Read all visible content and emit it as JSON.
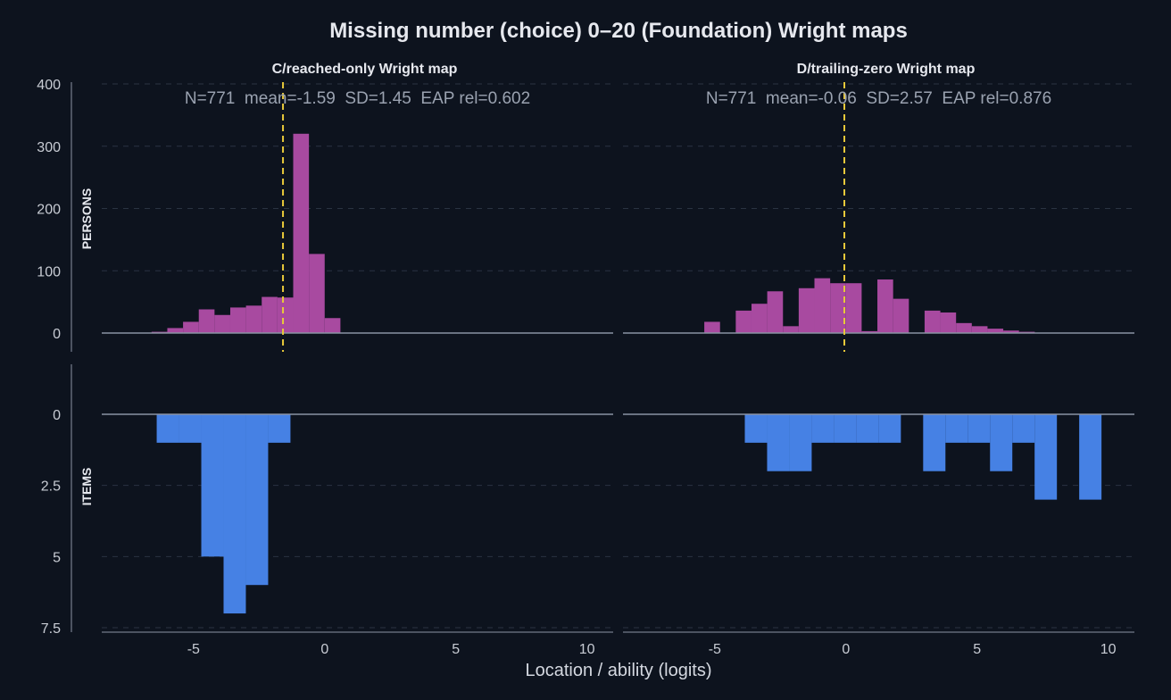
{
  "title": "Missing number (choice) 0–20 (Foundation) Wright maps",
  "xlabel": "Location / ability (logits)",
  "row_labels": {
    "persons": "PERSONS",
    "items": "ITEMS"
  },
  "colors": {
    "background": "#0d131e",
    "persons": "#a84aa0",
    "items": "#4681e4",
    "mean_line": "#e8c93a",
    "grid": "#2a3342",
    "axis": "#8a93a4",
    "text": "#e6e8ee",
    "stats_text": "#9aa2b0"
  },
  "chart_data": [
    {
      "type": "bar",
      "panel": "C/reached-only Wright map",
      "title": "C/reached-only Wright map",
      "stats": "N=771  mean=-1.59  SD=1.45  EAP rel=0.602",
      "mean": -1.59,
      "xlim": [
        -8.5,
        11
      ],
      "xticks": [
        -5,
        0,
        5,
        10
      ],
      "persons": {
        "ylim": [
          -30,
          400
        ],
        "yticks": [
          0,
          100,
          200,
          300,
          400
        ],
        "bin_width": 0.6,
        "bin_centers": [
          -6.3,
          -5.7,
          -5.1,
          -4.5,
          -3.9,
          -3.3,
          -2.7,
          -2.1,
          -1.5,
          -0.9,
          -0.3,
          0.3
        ],
        "counts": [
          2,
          8,
          18,
          38,
          29,
          41,
          44,
          58,
          57,
          320,
          127,
          24
        ]
      },
      "items": {
        "ylim": [
          7.5,
          -1
        ],
        "yticks": [
          0,
          2.5,
          5,
          7.5
        ],
        "bin_width": 0.85,
        "bin_centers": [
          -5.98,
          -5.13,
          -4.28,
          -3.43,
          -2.58,
          -1.73
        ],
        "counts": [
          1,
          1,
          5,
          7,
          6,
          1
        ]
      }
    },
    {
      "type": "bar",
      "panel": "D/trailing-zero Wright map",
      "title": "D/trailing-zero Wright map",
      "stats": "N=771  mean=-0.06  SD=2.57  EAP rel=0.876",
      "mean": -0.06,
      "xlim": [
        -8.5,
        11
      ],
      "xticks": [
        -5,
        0,
        5,
        10
      ],
      "persons": {
        "ylim": [
          -30,
          400
        ],
        "yticks": [
          0,
          100,
          200,
          300,
          400
        ],
        "bin_width": 0.6,
        "bin_centers": [
          -5.1,
          -3.9,
          -3.3,
          -2.7,
          -2.1,
          -1.5,
          -0.9,
          -0.3,
          0.3,
          0.9,
          1.5,
          2.1,
          3.3,
          3.9,
          4.5,
          5.1,
          5.7,
          6.3,
          6.9
        ],
        "counts": [
          18,
          36,
          47,
          67,
          11,
          72,
          88,
          80,
          80,
          3,
          86,
          55,
          36,
          33,
          16,
          11,
          7,
          4,
          2
        ]
      },
      "items": {
        "ylim": [
          7.5,
          -1
        ],
        "yticks": [
          0,
          2.5,
          5,
          7.5
        ],
        "bin_width": 0.85,
        "bin_centers": [
          -3.43,
          -2.58,
          -1.73,
          -0.88,
          -0.03,
          0.82,
          1.67,
          3.37,
          4.22,
          5.07,
          5.92,
          6.77,
          7.62,
          9.32
        ],
        "counts": [
          1,
          2,
          2,
          1,
          1,
          1,
          1,
          2,
          1,
          1,
          2,
          1,
          3,
          3
        ]
      }
    }
  ]
}
